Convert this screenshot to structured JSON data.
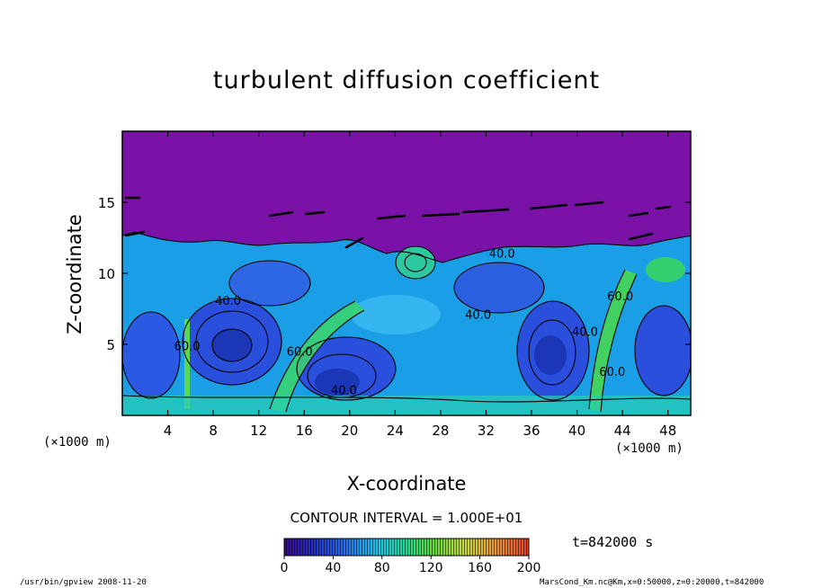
{
  "chart_data": {
    "type": "heatmap",
    "title": "turbulent diffusion coefficient",
    "xlabel": "X-coordinate",
    "ylabel": "Z-coordinate",
    "x_unit": "(×1000 m)",
    "y_unit": "(×1000 m)",
    "xlim": [
      0,
      50
    ],
    "ylim": [
      0,
      20
    ],
    "xticks": [
      4,
      8,
      12,
      16,
      20,
      24,
      28,
      32,
      36,
      40,
      44,
      48
    ],
    "yticks": [
      5,
      10,
      15
    ],
    "contour_interval": "CONTOUR INTERVAL = 1.000E+01",
    "colorbar": {
      "min": 0,
      "max": 200,
      "ticks": [
        0,
        40,
        80,
        120,
        160,
        200
      ]
    },
    "contour_labels": [
      {
        "text": "40.0",
        "x": 9.3,
        "y": 7.8
      },
      {
        "text": "60.0",
        "x": 5.7,
        "y": 4.6
      },
      {
        "text": "60.0",
        "x": 15.6,
        "y": 4.2
      },
      {
        "text": "40.0",
        "x": 19.5,
        "y": 1.5
      },
      {
        "text": "40.0",
        "x": 31.3,
        "y": 6.8
      },
      {
        "text": "40.0",
        "x": 33.4,
        "y": 11.1
      },
      {
        "text": "40.0",
        "x": 40.7,
        "y": 5.6
      },
      {
        "text": "60.0",
        "x": 43.1,
        "y": 2.8
      },
      {
        "text": "60.0",
        "x": 43.8,
        "y": 8.1
      }
    ],
    "time_label": "t=842000 s",
    "colors": {
      "upper_region": "#7b12a7",
      "core_blue": "#2b56e0",
      "light_blue": "#1aa5e8",
      "green": "#3be04a"
    }
  },
  "footer": {
    "left": "/usr/bin/gpview  2008-11-20",
    "right": "MarsCond_Km.nc@Km,x=0:50000,z=0:20000,t=842000"
  }
}
